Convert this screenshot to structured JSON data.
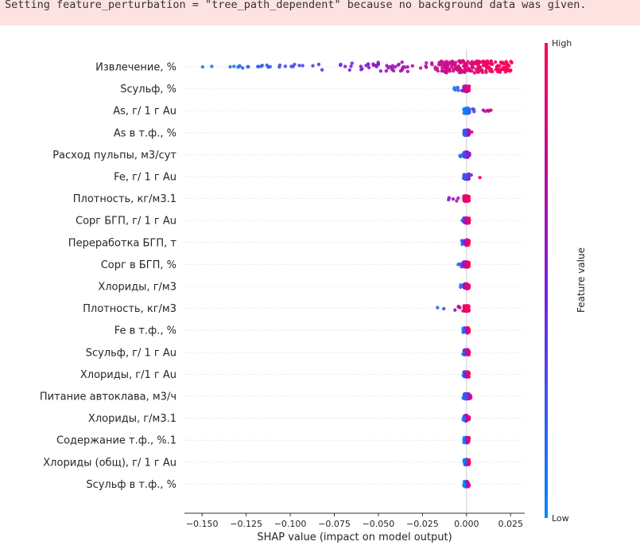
{
  "console": {
    "warning_text": "Setting feature_perturbation = \"tree_path_dependent\" because no background data was given."
  },
  "chart_data": {
    "type": "scatter",
    "subtype": "shap-beeswarm",
    "xlabel": "SHAP value (impact on model output)",
    "xlim": [
      -0.16,
      0.033
    ],
    "xticks": [
      -0.15,
      -0.125,
      -0.1,
      -0.075,
      -0.05,
      -0.025,
      0.0,
      0.025
    ],
    "xtick_labels": [
      "−0.150",
      "−0.125",
      "−0.100",
      "−0.075",
      "−0.050",
      "−0.025",
      "0.000",
      "0.025"
    ],
    "grid": false,
    "zero_line": true,
    "colorbar": {
      "label": "Feature value",
      "high_label": "High",
      "low_label": "Low",
      "high_color": "#ff0052",
      "low_color": "#008bfb"
    },
    "features": [
      {
        "name": "Извлечение, %",
        "range": [
          -0.152,
          0.026
        ],
        "spread": 0.05
      },
      {
        "name": "Sсульф, %",
        "range": [
          -0.007,
          0.002
        ],
        "spread": 0.01
      },
      {
        "name": "As, г/ 1 г Au",
        "range": [
          -0.002,
          0.016
        ],
        "spread": 0.006
      },
      {
        "name": "As в т.ф., %",
        "range": [
          -0.002,
          0.003
        ],
        "spread": 0.004
      },
      {
        "name": "Расход пульпы, м3/сут",
        "range": [
          -0.004,
          0.005
        ],
        "spread": 0.006
      },
      {
        "name": "Fe, г/ 1 г Au",
        "range": [
          -0.004,
          0.008
        ],
        "spread": 0.006
      },
      {
        "name": "Плотность, кг/м3.1",
        "range": [
          -0.022,
          0.002
        ],
        "spread": 0.008
      },
      {
        "name": "Сорг БГП, г/ 1 г Au",
        "range": [
          -0.003,
          0.001
        ],
        "spread": 0.003
      },
      {
        "name": "Переработка БГП, т",
        "range": [
          -0.003,
          0.001
        ],
        "spread": 0.003
      },
      {
        "name": "Сорг в БГП, %",
        "range": [
          -0.005,
          0.001
        ],
        "spread": 0.003
      },
      {
        "name": "Хлориды, г/м3",
        "range": [
          -0.004,
          0.001
        ],
        "spread": 0.003
      },
      {
        "name": "Плотность, кг/м3",
        "range": [
          -0.02,
          0.001
        ],
        "spread": 0.003
      },
      {
        "name": "Fe в т.ф., %",
        "range": [
          -0.002,
          0.001
        ],
        "spread": 0.003
      },
      {
        "name": "Sсульф, г/ 1 г Au",
        "range": [
          -0.002,
          0.001
        ],
        "spread": 0.003
      },
      {
        "name": "Хлориды, г/1 г Au",
        "range": [
          -0.002,
          0.001
        ],
        "spread": 0.003
      },
      {
        "name": "Питание автоклава, м3/ч",
        "range": [
          -0.002,
          0.003
        ],
        "spread": 0.003
      },
      {
        "name": "Хлориды, г/м3.1",
        "range": [
          -0.002,
          0.001
        ],
        "spread": 0.003
      },
      {
        "name": "Содержание т.ф., %.1",
        "range": [
          -0.001,
          0.001
        ],
        "spread": 0.003
      },
      {
        "name": "Хлориды (общ), г/ 1 г Au",
        "range": [
          -0.001,
          0.001
        ],
        "spread": 0.003
      },
      {
        "name": "Sсульф в т.ф., %",
        "range": [
          -0.001,
          0.001
        ],
        "spread": 0.003
      }
    ]
  }
}
